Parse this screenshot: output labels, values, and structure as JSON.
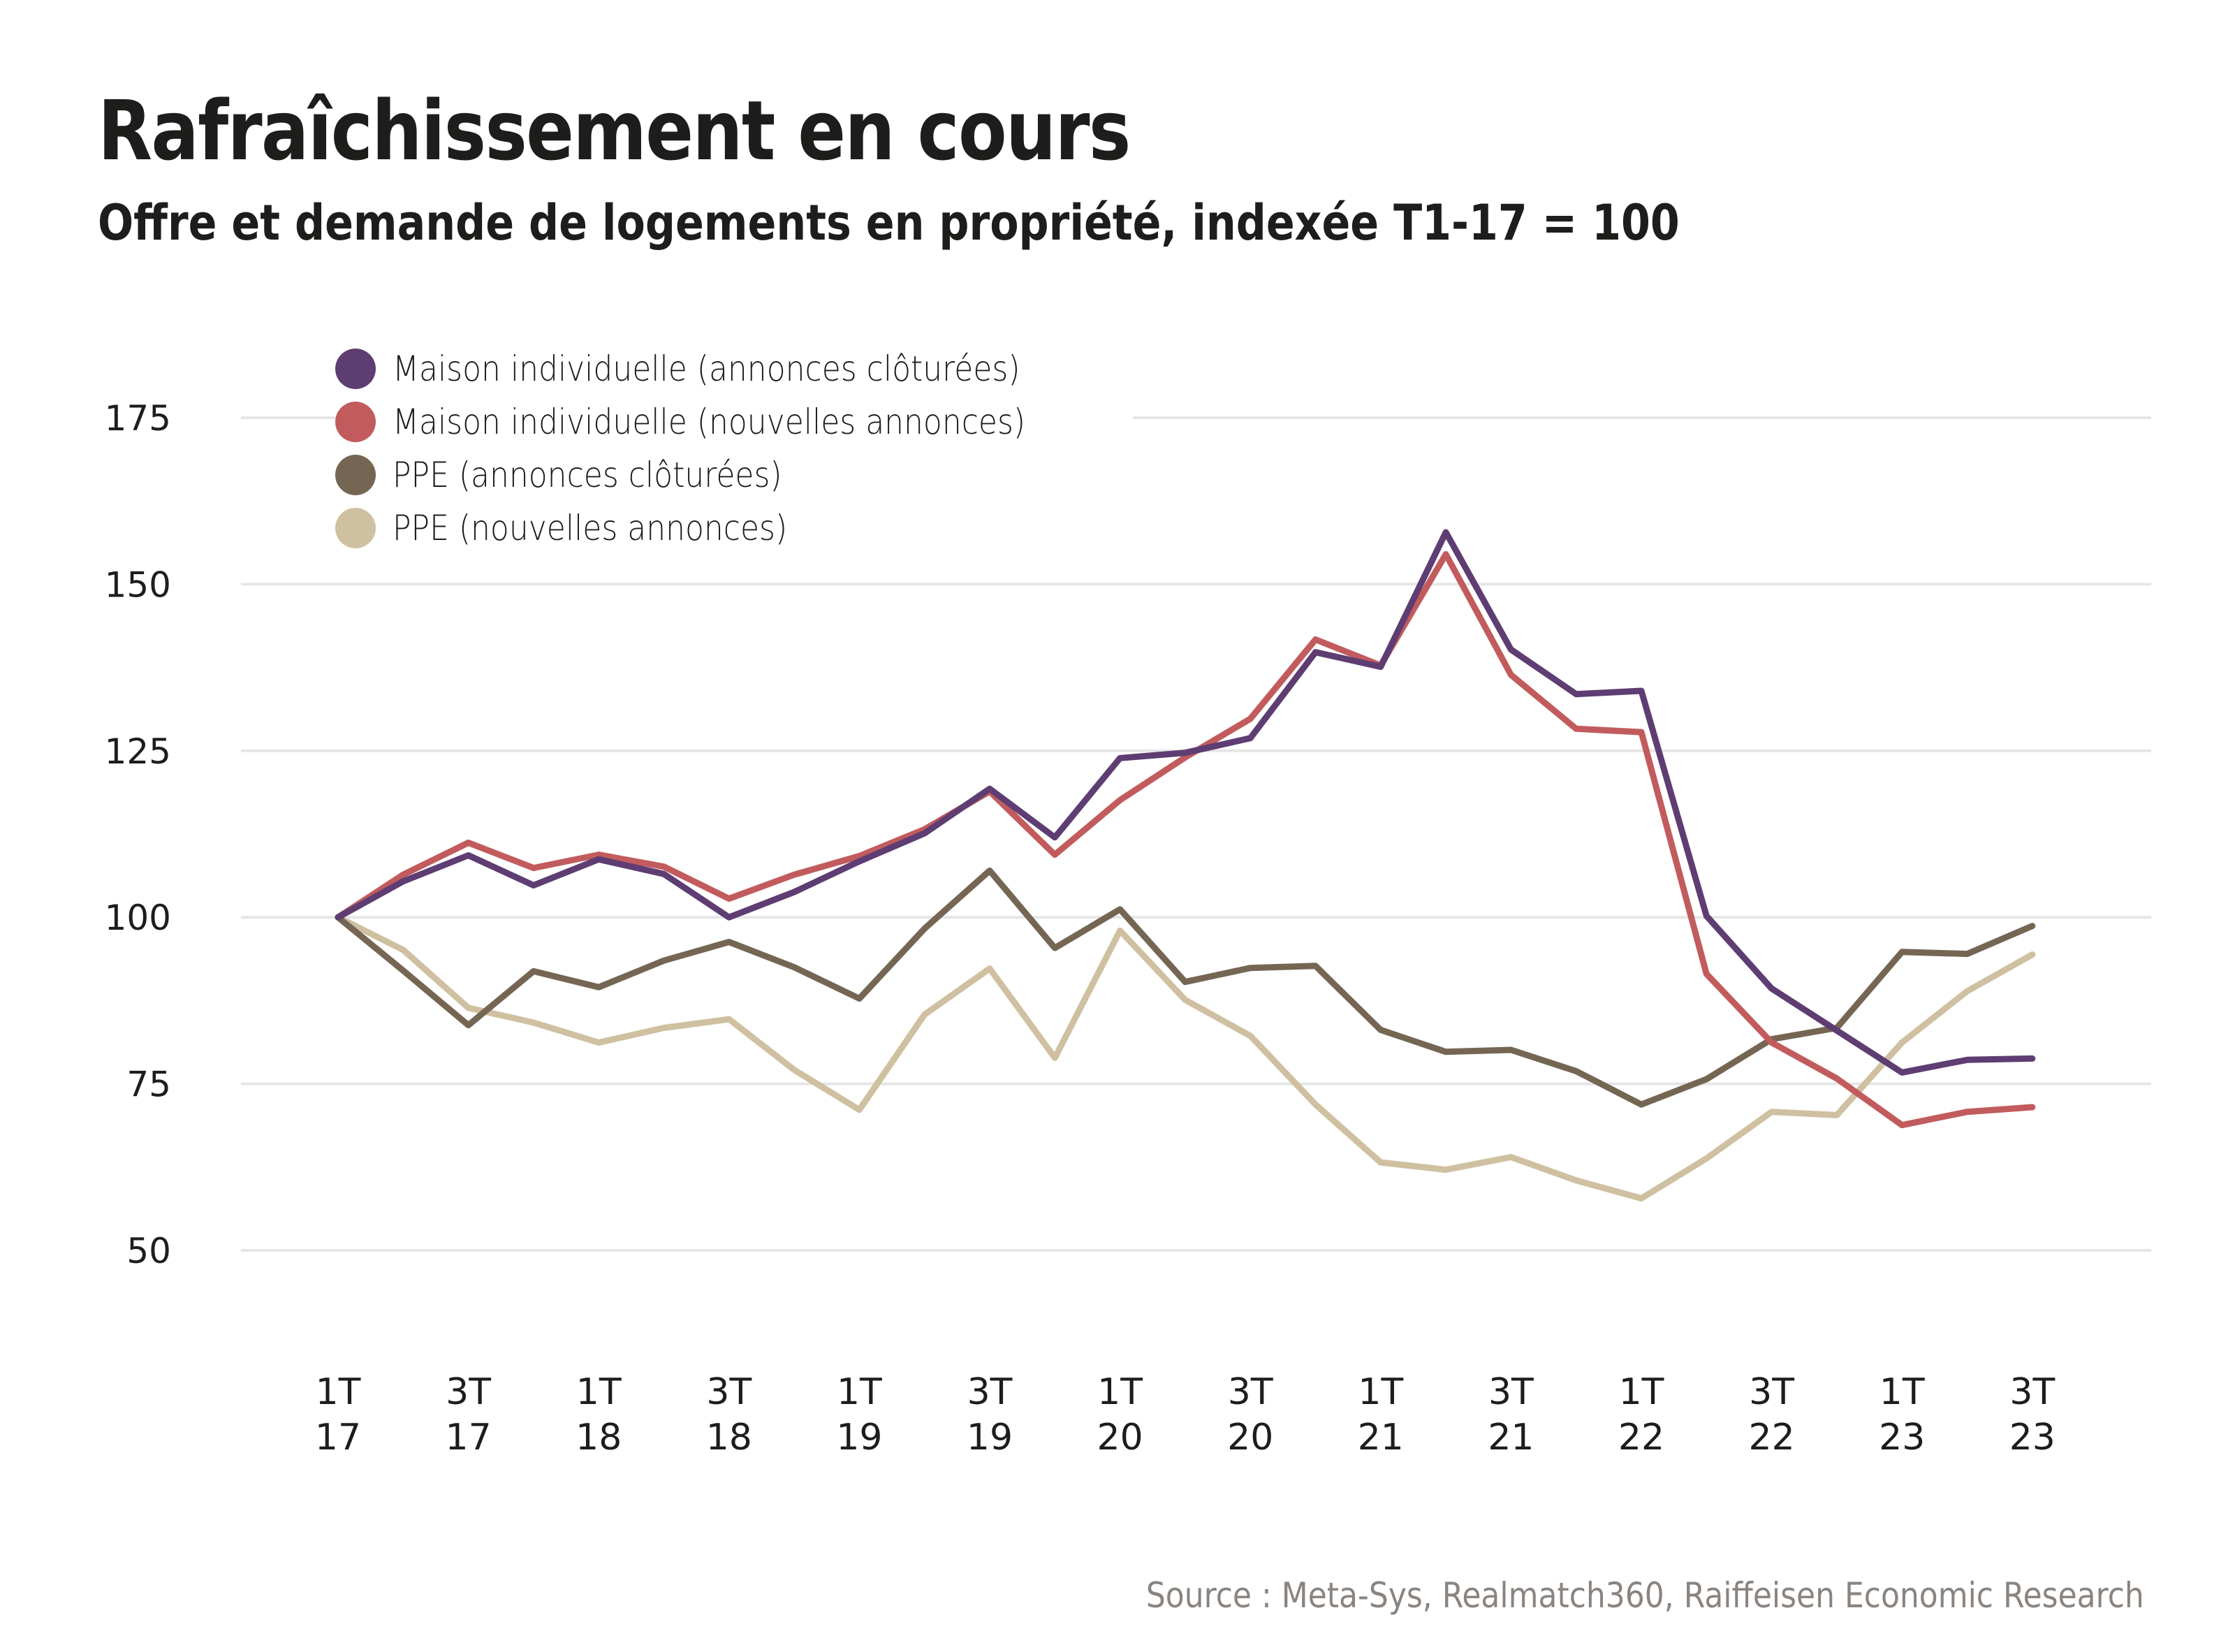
{
  "header": {
    "title": "Rafraîchissement en cours",
    "subtitle": "Offre et demande de logements en propriété, indexée T1-17 = 100"
  },
  "footer": {
    "source": "Source : Meta-Sys, Realmatch360, Raiffeisen Economic Research"
  },
  "chart_data": {
    "type": "line",
    "title": "Rafraîchissement en cours",
    "subtitle": "Offre et demande de logements en propriété, indexée T1-17 = 100",
    "xlabel": "",
    "ylabel": "",
    "ylim": [
      50,
      175
    ],
    "yticks": [
      175,
      150,
      125,
      100,
      75,
      50
    ],
    "grid": true,
    "legend_position": "top-left",
    "x": [
      "1T17",
      "2T17",
      "3T17",
      "4T17",
      "1T18",
      "2T18",
      "3T18",
      "4T18",
      "1T19",
      "2T19",
      "3T19",
      "4T19",
      "1T20",
      "2T20",
      "3T20",
      "4T20",
      "1T21",
      "2T21",
      "3T21",
      "4T21",
      "1T22",
      "2T22",
      "3T22",
      "4T22",
      "1T23",
      "2T23",
      "3T23"
    ],
    "xtick_labels": [
      {
        "index": 0,
        "line1": "1T",
        "line2": "17"
      },
      {
        "index": 2,
        "line1": "3T",
        "line2": "17"
      },
      {
        "index": 4,
        "line1": "1T",
        "line2": "18"
      },
      {
        "index": 6,
        "line1": "3T",
        "line2": "18"
      },
      {
        "index": 8,
        "line1": "1T",
        "line2": "19"
      },
      {
        "index": 10,
        "line1": "3T",
        "line2": "19"
      },
      {
        "index": 12,
        "line1": "1T",
        "line2": "20"
      },
      {
        "index": 14,
        "line1": "3T",
        "line2": "20"
      },
      {
        "index": 16,
        "line1": "1T",
        "line2": "21"
      },
      {
        "index": 18,
        "line1": "3T",
        "line2": "21"
      },
      {
        "index": 20,
        "line1": "1T",
        "line2": "22"
      },
      {
        "index": 22,
        "line1": "3T",
        "line2": "22"
      },
      {
        "index": 24,
        "line1": "1T",
        "line2": "23"
      },
      {
        "index": 26,
        "line1": "3T",
        "line2": "23"
      }
    ],
    "series": [
      {
        "name": "Maison individuelle (annonces clôturées)",
        "color": "#5e3d73",
        "values": [
          100,
          105.4,
          109.3,
          104.8,
          108.7,
          106.5,
          100,
          103.8,
          108.4,
          112.6,
          119.3,
          112.0,
          123.9,
          124.7,
          126.9,
          139.8,
          137.6,
          157.8,
          140.2,
          133.5,
          134.0,
          100.2,
          89.3,
          83.0,
          76.7,
          78.6,
          78.8
        ]
      },
      {
        "name": "Maison individuelle (nouvelles annonces)",
        "color": "#c25b5d",
        "values": [
          100,
          106.4,
          111.2,
          107.4,
          109.4,
          107.6,
          102.8,
          106.4,
          109.2,
          113.2,
          118.9,
          109.4,
          117.6,
          124.0,
          129.8,
          141.7,
          137.8,
          154.5,
          136.4,
          128.3,
          127.8,
          91.5,
          81.2,
          75.8,
          68.8,
          70.8,
          71.5
        ]
      },
      {
        "name": "PPE (annonces clôturées)",
        "color": "#756654",
        "values": [
          100,
          92.0,
          83.8,
          91.9,
          89.5,
          93.5,
          96.3,
          92.5,
          87.8,
          98.3,
          107.0,
          95.4,
          101.2,
          90.3,
          92.4,
          92.7,
          83.1,
          79.8,
          80.1,
          76.9,
          71.9,
          75.7,
          81.7,
          83.4,
          94.8,
          94.5,
          98.7
        ]
      },
      {
        "name": "PPE (nouvelles annonces)",
        "color": "#cfc0a1",
        "values": [
          100,
          95.1,
          86.4,
          84.2,
          81.2,
          83.4,
          84.7,
          77.1,
          71.1,
          85.4,
          92.3,
          78.9,
          98.0,
          87.6,
          82.2,
          71.9,
          63.2,
          62.1,
          64.0,
          60.5,
          57.8,
          63.8,
          70.8,
          70.3,
          81.2,
          88.9,
          94.4
        ]
      }
    ]
  }
}
